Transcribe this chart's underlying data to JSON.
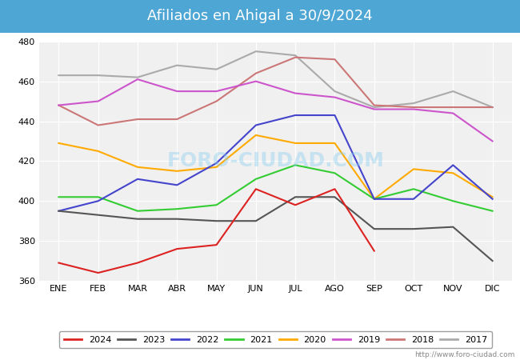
{
  "title": "Afiliados en Ahigal a 30/9/2024",
  "title_bg_color": "#4da6d4",
  "title_text_color": "white",
  "ylim": [
    360,
    480
  ],
  "yticks": [
    360,
    380,
    400,
    420,
    440,
    460,
    480
  ],
  "months": [
    "ENE",
    "FEB",
    "MAR",
    "ABR",
    "MAY",
    "JUN",
    "JUL",
    "AGO",
    "SEP",
    "OCT",
    "NOV",
    "DIC"
  ],
  "series": {
    "2024": {
      "color": "#dd2222",
      "data": [
        369,
        364,
        369,
        376,
        378,
        406,
        398,
        406,
        375,
        null,
        null,
        null
      ]
    },
    "2023": {
      "color": "#555555",
      "data": [
        395,
        393,
        391,
        391,
        390,
        390,
        402,
        402,
        386,
        386,
        387,
        370
      ]
    },
    "2022": {
      "color": "#4444cc",
      "data": [
        395,
        400,
        411,
        408,
        419,
        438,
        443,
        443,
        401,
        401,
        418,
        401
      ]
    },
    "2021": {
      "color": "#33cc33",
      "data": [
        402,
        402,
        395,
        396,
        398,
        411,
        418,
        414,
        401,
        406,
        400,
        395
      ]
    },
    "2020": {
      "color": "#ffaa00",
      "data": [
        429,
        425,
        417,
        415,
        417,
        433,
        429,
        429,
        401,
        416,
        414,
        402
      ]
    },
    "2019": {
      "color": "#cc55cc",
      "data": [
        448,
        450,
        461,
        455,
        455,
        460,
        454,
        452,
        446,
        446,
        444,
        430
      ]
    },
    "2018": {
      "color": "#cc7777",
      "data": [
        448,
        438,
        441,
        441,
        450,
        464,
        472,
        471,
        448,
        447,
        447,
        447
      ]
    },
    "2017": {
      "color": "#aaaaaa",
      "data": [
        463,
        463,
        462,
        468,
        466,
        475,
        473,
        455,
        447,
        449,
        455,
        447
      ]
    }
  },
  "watermark": "FORO-CIUDAD.COM",
  "url": "http://www.foro-ciudad.com",
  "background_color": "#ffffff",
  "plot_bg_color": "#f0f0f0"
}
